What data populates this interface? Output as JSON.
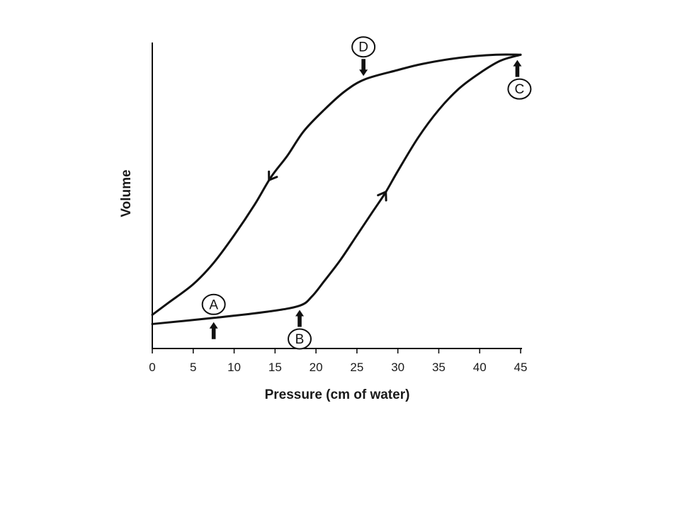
{
  "chart_data": {
    "type": "line",
    "xlabel": "Pressure (cm of water)",
    "ylabel": "Volume",
    "xlim": [
      0,
      45
    ],
    "ylim": [
      0,
      100
    ],
    "x_ticks": [
      "0",
      "5",
      "10",
      "15",
      "20",
      "25",
      "30",
      "35",
      "40",
      "45"
    ],
    "y_ticks": [],
    "grid": false,
    "legend": "none",
    "series": [
      {
        "x": [
          0,
          7.5,
          14,
          18,
          19.5,
          21,
          23,
          25,
          27,
          28.5,
          30,
          32.5,
          35,
          37.5,
          40,
          42.5,
          45
        ],
        "y": [
          8,
          10,
          12,
          14,
          17,
          22,
          29,
          37,
          45,
          51,
          58,
          69,
          78,
          85,
          90,
          94,
          96
        ]
      },
      {
        "x": [
          45,
          42,
          37.5,
          33,
          30,
          26,
          23.5,
          21,
          18.5,
          16.5,
          14.5,
          12.5,
          10,
          7.5,
          5,
          2,
          0
        ],
        "y": [
          96,
          96,
          95,
          93,
          91,
          88,
          84,
          78,
          71,
          63,
          56,
          47,
          37,
          28,
          21,
          15,
          11
        ]
      }
    ],
    "flow_arrows": [
      {
        "series": 0,
        "x": 28.3
      },
      {
        "series": 1,
        "x": 14.5
      }
    ],
    "annotations": [
      {
        "label": "A",
        "series": 0,
        "x": 7.5,
        "arrow": "up",
        "label_side": "above"
      },
      {
        "label": "B",
        "series": 0,
        "x": 18,
        "arrow": "up",
        "label_side": "below"
      },
      {
        "label": "C",
        "series": 0,
        "x": 44.6,
        "arrow": "up",
        "label_side": "below"
      },
      {
        "label": "D",
        "series": 1,
        "x": 25.8,
        "arrow": "down",
        "label_side": "above"
      }
    ],
    "colors": {
      "line": "#111111",
      "background": "#ffffff"
    }
  }
}
